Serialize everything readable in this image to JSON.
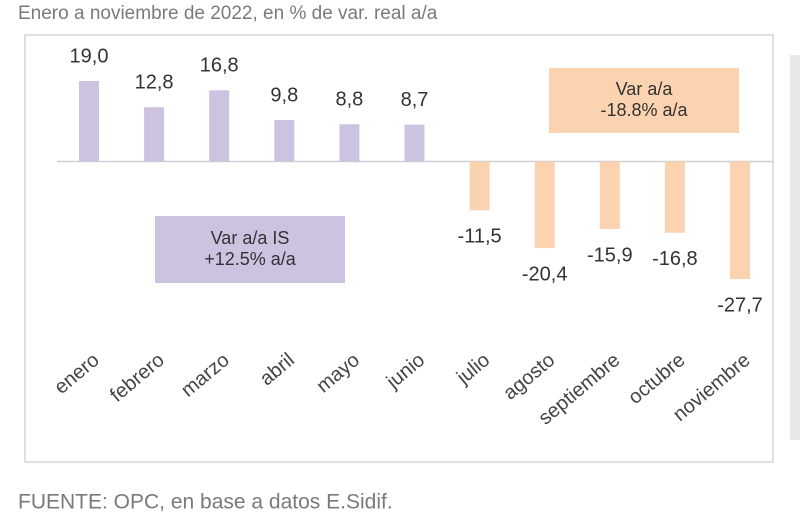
{
  "chart_data": {
    "type": "bar",
    "subtitle": "Enero a noviembre de 2022, en % de var. real a/a",
    "categories": [
      "enero",
      "febrero",
      "marzo",
      "abril",
      "mayo",
      "junio",
      "julio",
      "agosto",
      "septiembre",
      "octubre",
      "noviembre"
    ],
    "values": [
      19.0,
      12.8,
      16.8,
      9.8,
      8.8,
      8.7,
      -11.5,
      -20.4,
      -15.9,
      -16.8,
      -27.7
    ],
    "value_labels": [
      "19,0",
      "12,8",
      "16,8",
      "9,8",
      "8,8",
      "8,7",
      "-11,5",
      "-20,4",
      "-15,9",
      "-16,8",
      "-27,7"
    ],
    "positive_color": "#cbc3df",
    "negative_color": "#fbd3b1",
    "annotations": [
      {
        "lines": [
          "Var a/a IS",
          "+12.5% a/a"
        ],
        "color": "#cbc3df"
      },
      {
        "lines": [
          "Var a/a",
          "-18.8% a/a"
        ],
        "color": "#fbd3b1"
      }
    ],
    "source": "FUENTE: OPC, en base a datos E.Sidif."
  }
}
